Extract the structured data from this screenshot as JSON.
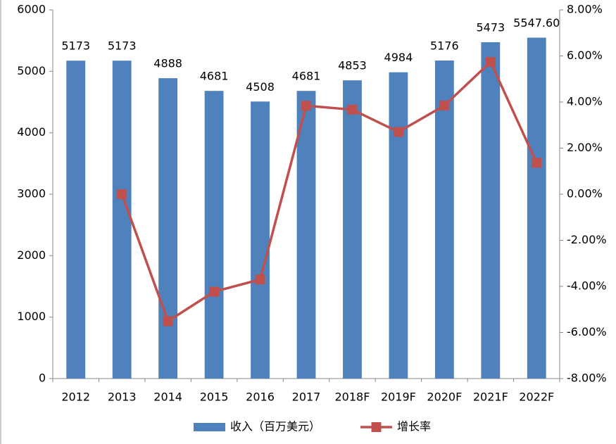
{
  "chart_data": {
    "type": "bar-line",
    "categories": [
      "2012",
      "2013",
      "2014",
      "2015",
      "2016",
      "2017",
      "2018F",
      "2019F",
      "2020F",
      "2021F",
      "2022F"
    ],
    "series": [
      {
        "name": "收入（百万美元）",
        "color": "#4f81bd",
        "type": "bar",
        "values": [
          5173,
          5173,
          4888,
          4681,
          4508,
          4681,
          4853,
          4984,
          5176,
          5473,
          5547.6
        ],
        "value_labels": [
          "5173",
          "5173",
          "4888",
          "4681",
          "4508",
          "4681",
          "4853",
          "4984",
          "5176",
          "5473",
          "5547.60"
        ]
      },
      {
        "name": "增长率",
        "color": "#c0504d",
        "type": "line",
        "axis": "y2",
        "values": [
          null,
          0,
          -5.51,
          -4.23,
          -3.7,
          3.84,
          3.67,
          2.7,
          3.85,
          5.74,
          1.36
        ]
      }
    ],
    "ylim": [
      0,
      6000
    ],
    "yticks": [
      0,
      1000,
      2000,
      3000,
      4000,
      5000,
      6000
    ],
    "y2lim": [
      -8,
      8
    ],
    "y2ticks": [
      {
        "value": -8,
        "label": "-8.00%"
      },
      {
        "value": -6,
        "label": "-6.00%"
      },
      {
        "value": -4,
        "label": "-4.00%"
      },
      {
        "value": -2,
        "label": "-2.00%"
      },
      {
        "value": 0,
        "label": "0.00%"
      },
      {
        "value": 2,
        "label": "2.00%"
      },
      {
        "value": 4,
        "label": "4.00%"
      },
      {
        "value": 6,
        "label": "6.00%"
      },
      {
        "value": 8,
        "label": "8.00%"
      }
    ],
    "legend": "bottom"
  }
}
